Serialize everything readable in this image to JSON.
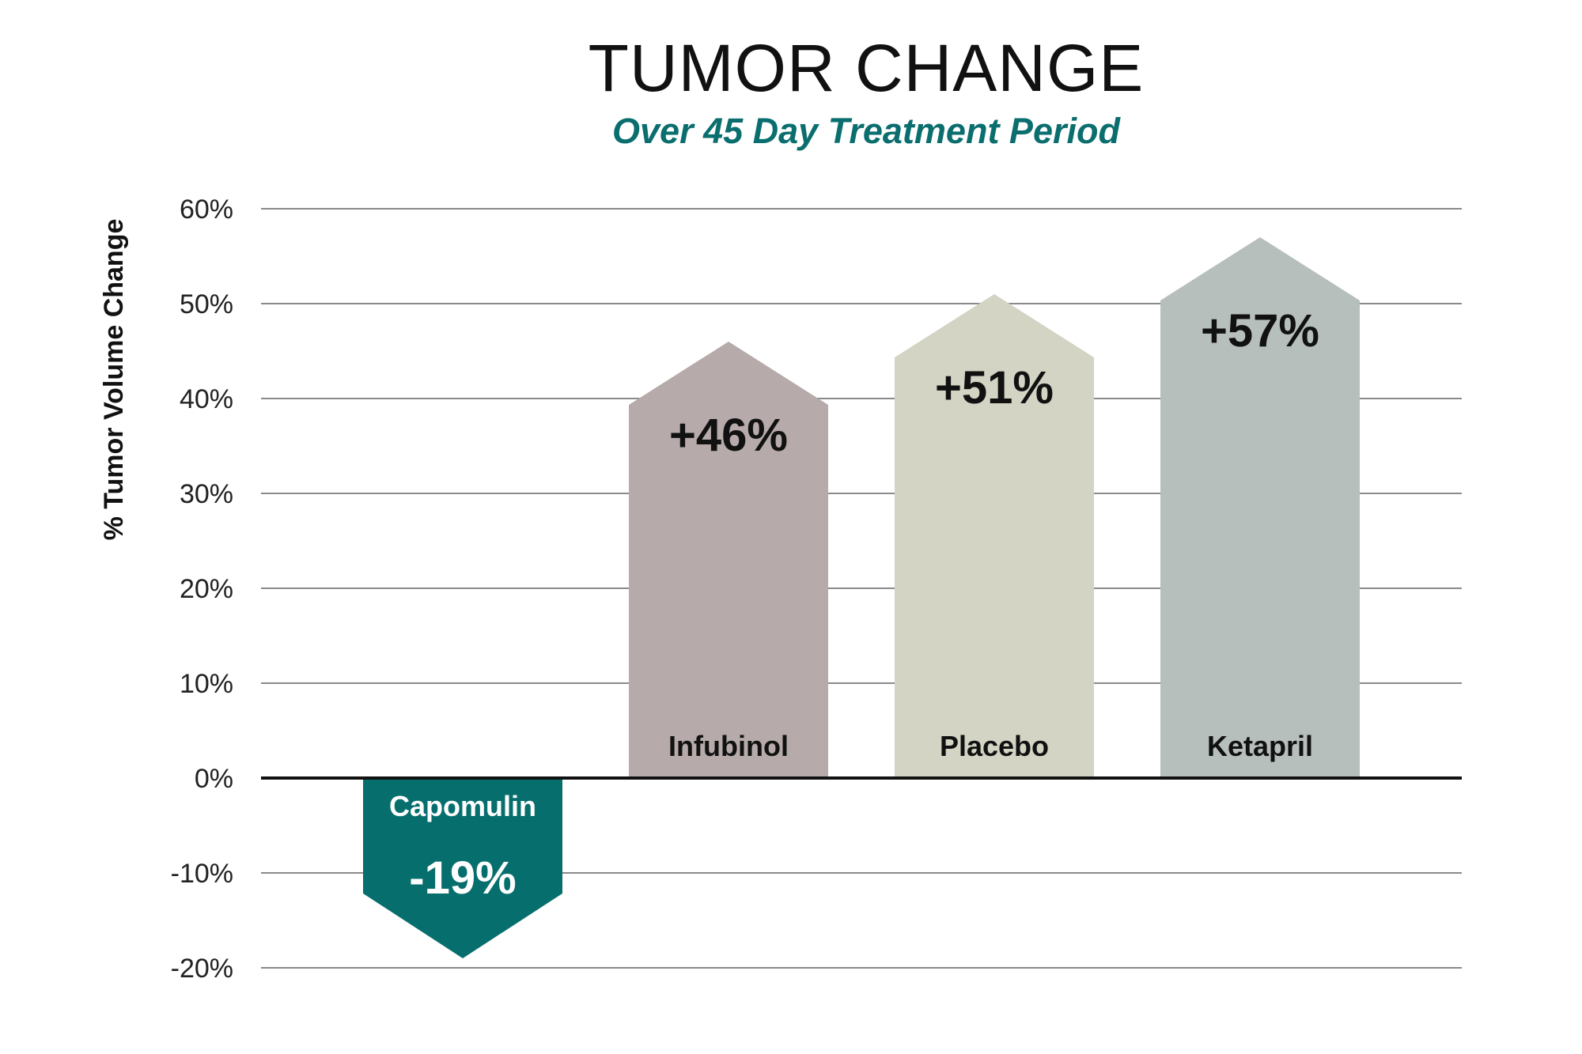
{
  "chart_data": {
    "type": "bar",
    "title": "TUMOR CHANGE",
    "subtitle": "Over 45 Day Treatment Period",
    "ylabel": "% Tumor Volume Change",
    "xlabel": "",
    "ylim": [
      -20,
      60
    ],
    "yticks": [
      60,
      50,
      40,
      30,
      20,
      10,
      0,
      -10,
      -20
    ],
    "ytick_labels": [
      "60%",
      "50%",
      "40%",
      "30%",
      "20%",
      "10%",
      "0%",
      "-10%",
      "-20%"
    ],
    "grid": true,
    "categories": [
      "Capomulin",
      "Infubinol",
      "Placebo",
      "Ketapril"
    ],
    "values": [
      -19,
      46,
      51,
      57
    ],
    "value_labels": [
      "-19%",
      "+46%",
      "+51%",
      "+57%"
    ],
    "colors": [
      "#076e6e",
      "#b6aaaa",
      "#d3d4c4",
      "#b7bfbd"
    ],
    "label_colors": [
      "#ffffff",
      "#111111",
      "#111111",
      "#111111"
    ]
  }
}
